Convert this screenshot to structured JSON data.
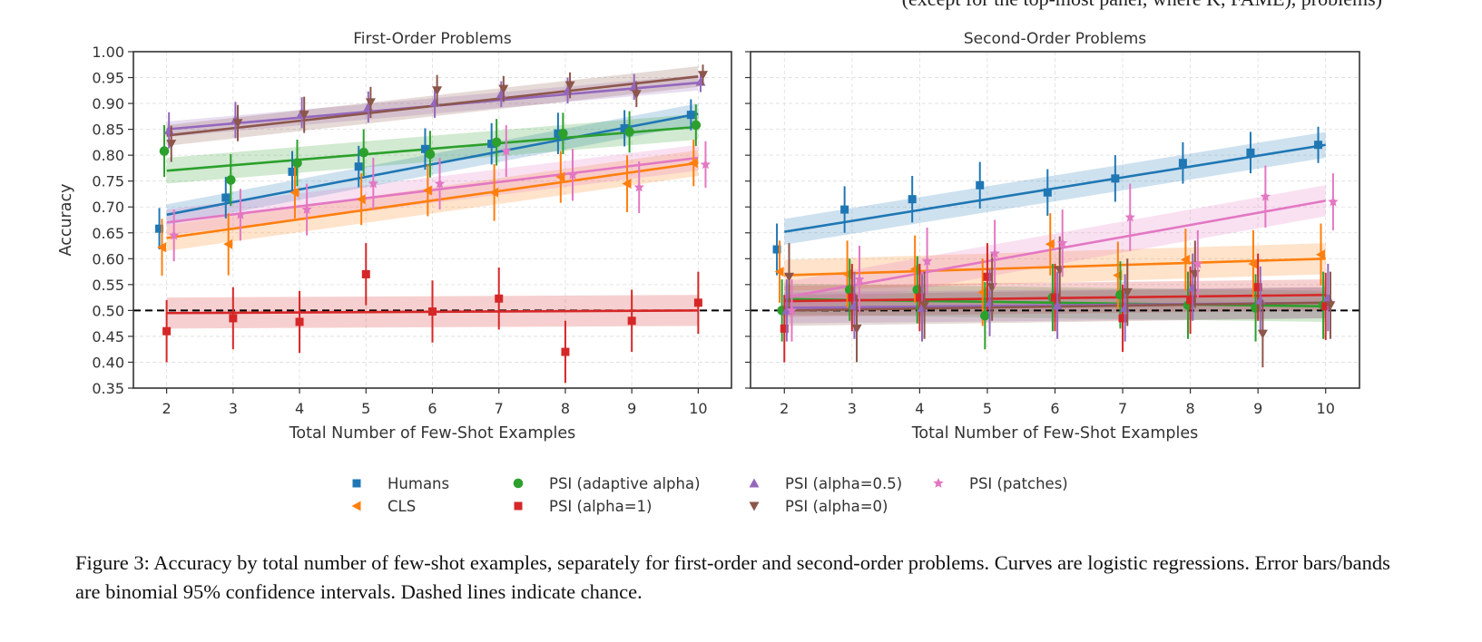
{
  "topline_text": "(except for the top-most panel, where K, FAME), problems)",
  "caption": "Figure 3: Accuracy by total number of few-shot examples, separately for first-order and second-order problems. Curves are logistic regressions. Error bars/bands are binomial 95% confidence intervals. Dashed lines indicate chance.",
  "chart_data": {
    "type": "scatter",
    "ylabel": "Accuracy",
    "xlabel": "Total Number of Few-Shot Examples",
    "x_ticks": [
      2,
      3,
      4,
      5,
      6,
      7,
      8,
      9,
      10
    ],
    "y_ticks": [
      "0.35",
      "0.40",
      "0.45",
      "0.50",
      "0.55",
      "0.60",
      "0.65",
      "0.70",
      "0.75",
      "0.80",
      "0.85",
      "0.90",
      "0.95",
      "1.00"
    ],
    "ylim": [
      0.35,
      1.0
    ],
    "xlim": [
      1.5,
      10.5
    ],
    "chance_level": 0.5,
    "grid": true,
    "legend_placement": "bottom-center",
    "series_styles": [
      {
        "name": "Humans",
        "color": "#1f77b4",
        "marker": "square"
      },
      {
        "name": "CLS",
        "color": "#ff7f0e",
        "marker": "triangle-left"
      },
      {
        "name": "PSI (adaptive alpha)",
        "color": "#2ca02c",
        "marker": "circle"
      },
      {
        "name": "PSI (alpha=1)",
        "color": "#d62728",
        "marker": "square"
      },
      {
        "name": "PSI (alpha=0.5)",
        "color": "#9467bd",
        "marker": "triangle-up"
      },
      {
        "name": "PSI (alpha=0)",
        "color": "#8c564b",
        "marker": "triangle-down"
      },
      {
        "name": "PSI (patches)",
        "color": "#e377c2",
        "marker": "star"
      }
    ],
    "panels": [
      {
        "title": "First-Order Problems",
        "series": [
          {
            "name": "Humans",
            "x": [
              2,
              3,
              4,
              5,
              6,
              7,
              8,
              9,
              10
            ],
            "y": [
              0.658,
              0.718,
              0.768,
              0.778,
              0.812,
              0.822,
              0.842,
              0.852,
              0.878
            ],
            "err": [
              0.04,
              0.04,
              0.04,
              0.04,
              0.04,
              0.04,
              0.04,
              0.035,
              0.03
            ],
            "fit": [
              0.685,
              0.88
            ],
            "band": 0.02
          },
          {
            "name": "CLS",
            "x": [
              2,
              3,
              4,
              5,
              6,
              7,
              8,
              9,
              10
            ],
            "y": [
              0.622,
              0.628,
              0.728,
              0.715,
              0.732,
              0.728,
              0.758,
              0.745,
              0.785
            ],
            "err": [
              0.055,
              0.06,
              0.05,
              0.05,
              0.05,
              0.055,
              0.05,
              0.055,
              0.045
            ],
            "fit": [
              0.64,
              0.785
            ],
            "band": 0.025
          },
          {
            "name": "PSI (adaptive alpha)",
            "x": [
              2,
              3,
              4,
              5,
              6,
              7,
              8,
              9,
              10
            ],
            "y": [
              0.808,
              0.752,
              0.785,
              0.805,
              0.802,
              0.825,
              0.842,
              0.845,
              0.858
            ],
            "err": [
              0.05,
              0.05,
              0.045,
              0.045,
              0.045,
              0.045,
              0.04,
              0.04,
              0.04
            ],
            "fit": [
              0.77,
              0.855
            ],
            "band": 0.025
          },
          {
            "name": "PSI (alpha=1)",
            "x": [
              2,
              3,
              4,
              5,
              6,
              7,
              8,
              9,
              10
            ],
            "y": [
              0.46,
              0.485,
              0.478,
              0.57,
              0.498,
              0.523,
              0.42,
              0.48,
              0.515
            ],
            "err": [
              0.06,
              0.06,
              0.06,
              0.06,
              0.06,
              0.06,
              0.06,
              0.06,
              0.06
            ],
            "fit": [
              0.495,
              0.5
            ],
            "band": 0.03
          },
          {
            "name": "PSI (alpha=0.5)",
            "x": [
              2,
              3,
              4,
              5,
              6,
              7,
              8,
              9,
              10
            ],
            "y": [
              0.848,
              0.868,
              0.882,
              0.893,
              0.902,
              0.918,
              0.925,
              0.932,
              0.942
            ],
            "err": [
              0.035,
              0.035,
              0.03,
              0.03,
              0.03,
              0.025,
              0.025,
              0.025,
              0.02
            ],
            "fit": [
              0.85,
              0.94
            ],
            "band": 0.015
          },
          {
            "name": "PSI (alpha=0)",
            "x": [
              2,
              3,
              4,
              5,
              6,
              7,
              8,
              9,
              10
            ],
            "y": [
              0.822,
              0.862,
              0.878,
              0.902,
              0.925,
              0.928,
              0.935,
              0.918,
              0.955
            ],
            "err": [
              0.035,
              0.035,
              0.035,
              0.03,
              0.03,
              0.025,
              0.025,
              0.025,
              0.02
            ],
            "fit": [
              0.838,
              0.952
            ],
            "band": 0.02
          },
          {
            "name": "PSI (patches)",
            "x": [
              2,
              3,
              4,
              5,
              6,
              7,
              8,
              9,
              10
            ],
            "y": [
              0.645,
              0.685,
              0.695,
              0.745,
              0.745,
              0.808,
              0.762,
              0.738,
              0.782
            ],
            "err": [
              0.05,
              0.05,
              0.05,
              0.05,
              0.05,
              0.05,
              0.05,
              0.05,
              0.045
            ],
            "fit": [
              0.67,
              0.795
            ],
            "band": 0.025
          }
        ]
      },
      {
        "title": "Second-Order Problems",
        "series": [
          {
            "name": "Humans",
            "x": [
              2,
              3,
              4,
              5,
              6,
              7,
              8,
              9,
              10
            ],
            "y": [
              0.618,
              0.695,
              0.715,
              0.742,
              0.728,
              0.755,
              0.785,
              0.805,
              0.82
            ],
            "err": [
              0.05,
              0.045,
              0.045,
              0.045,
              0.045,
              0.045,
              0.04,
              0.04,
              0.035
            ],
            "fit": [
              0.652,
              0.82
            ],
            "band": 0.025
          },
          {
            "name": "CLS",
            "x": [
              2,
              3,
              4,
              5,
              6,
              7,
              8,
              9,
              10
            ],
            "y": [
              0.575,
              0.57,
              0.58,
              0.535,
              0.628,
              0.568,
              0.598,
              0.59,
              0.608
            ],
            "err": [
              0.06,
              0.065,
              0.065,
              0.065,
              0.06,
              0.065,
              0.06,
              0.065,
              0.06
            ],
            "fit": [
              0.568,
              0.6
            ],
            "band": 0.03
          },
          {
            "name": "PSI (adaptive alpha)",
            "x": [
              2,
              3,
              4,
              5,
              6,
              7,
              8,
              9,
              10
            ],
            "y": [
              0.5,
              0.54,
              0.54,
              0.49,
              0.525,
              0.53,
              0.51,
              0.505,
              0.51
            ],
            "err": [
              0.06,
              0.06,
              0.065,
              0.065,
              0.065,
              0.065,
              0.065,
              0.065,
              0.065
            ],
            "fit": [
              0.522,
              0.508
            ],
            "band": 0.03
          },
          {
            "name": "PSI (alpha=1)",
            "x": [
              2,
              3,
              4,
              5,
              6,
              7,
              8,
              9,
              10
            ],
            "y": [
              0.465,
              0.525,
              0.525,
              0.565,
              0.525,
              0.485,
              0.52,
              0.545,
              0.508
            ],
            "err": [
              0.065,
              0.065,
              0.065,
              0.065,
              0.065,
              0.065,
              0.065,
              0.065,
              0.065
            ],
            "fit": [
              0.518,
              0.53
            ],
            "band": 0.03
          },
          {
            "name": "PSI (alpha=0.5)",
            "x": [
              2,
              3,
              4,
              5,
              6,
              7,
              8,
              9,
              10
            ],
            "y": [
              0.5,
              0.51,
              0.505,
              0.515,
              0.51,
              0.505,
              0.545,
              0.52,
              0.525
            ],
            "err": [
              0.06,
              0.065,
              0.065,
              0.065,
              0.065,
              0.065,
              0.065,
              0.065,
              0.065
            ],
            "fit": [
              0.505,
              0.515
            ],
            "band": 0.03
          },
          {
            "name": "PSI (alpha=0)",
            "x": [
              2,
              3,
              4,
              5,
              6,
              7,
              8,
              9,
              10
            ],
            "y": [
              0.565,
              0.465,
              0.51,
              0.545,
              0.578,
              0.535,
              0.57,
              0.455,
              0.51
            ],
            "err": [
              0.065,
              0.065,
              0.065,
              0.065,
              0.065,
              0.065,
              0.065,
              0.065,
              0.065
            ],
            "fit": [
              0.5,
              0.515
            ],
            "band": 0.03
          },
          {
            "name": "PSI (patches)",
            "x": [
              2,
              3,
              4,
              5,
              6,
              7,
              8,
              9,
              10
            ],
            "y": [
              0.5,
              0.56,
              0.595,
              0.61,
              0.63,
              0.68,
              0.59,
              0.72,
              0.71
            ],
            "err": [
              0.06,
              0.065,
              0.065,
              0.065,
              0.065,
              0.065,
              0.065,
              0.06,
              0.055
            ],
            "fit": [
              0.525,
              0.712
            ],
            "band": 0.03
          }
        ]
      }
    ],
    "legend": [
      [
        "Humans",
        "PSI (adaptive alpha)",
        "PSI (alpha=0.5)",
        "PSI (patches)"
      ],
      [
        "CLS",
        "PSI (alpha=1)",
        "PSI (alpha=0)"
      ]
    ]
  }
}
